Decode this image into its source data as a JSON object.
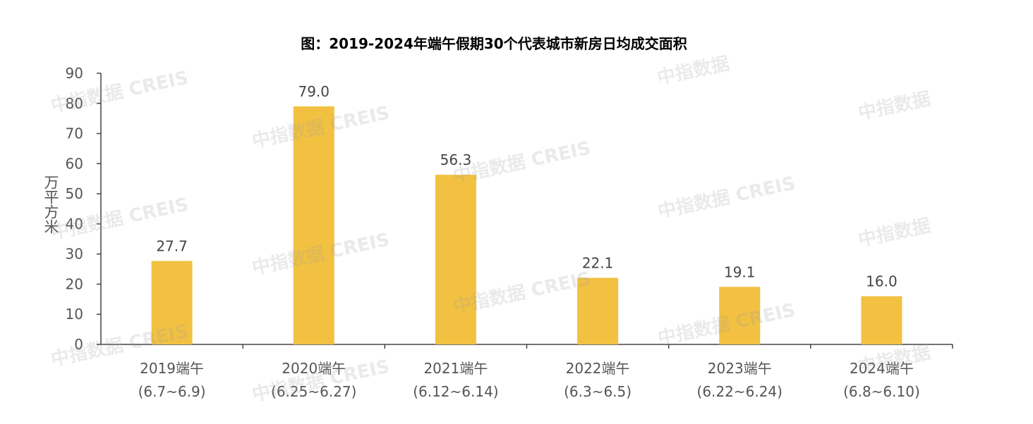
{
  "chart_data": {
    "type": "bar",
    "title": "图：2019-2024年端午假期30个代表城市新房日均成交面积",
    "ylabel": "万平方米",
    "xlabel": "",
    "categories": [
      {
        "line1": "2019端午",
        "line2": "(6.7~6.9)"
      },
      {
        "line1": "2020端午",
        "line2": "(6.25~6.27)"
      },
      {
        "line1": "2021端午",
        "line2": "(6.12~6.14)"
      },
      {
        "line1": "2022端午",
        "line2": "(6.3~6.5)"
      },
      {
        "line1": "2023端午",
        "line2": "(6.22~6.24)"
      },
      {
        "line1": "2024端午",
        "line2": "(6.8~6.10)"
      }
    ],
    "values": [
      27.7,
      79.0,
      56.3,
      22.1,
      19.1,
      16.0
    ],
    "value_labels": [
      "27.7",
      "79.0",
      "56.3",
      "22.1",
      "19.1",
      "16.0"
    ],
    "ylim": [
      0,
      90
    ],
    "yticks": [
      "0",
      "10",
      "20",
      "30",
      "40",
      "50",
      "60",
      "70",
      "80",
      "90"
    ],
    "grid": false,
    "bar_color": "#F2C141",
    "axis_color": "#444444"
  },
  "watermark": {
    "cn": "中指数据",
    "en": "CREIS"
  }
}
